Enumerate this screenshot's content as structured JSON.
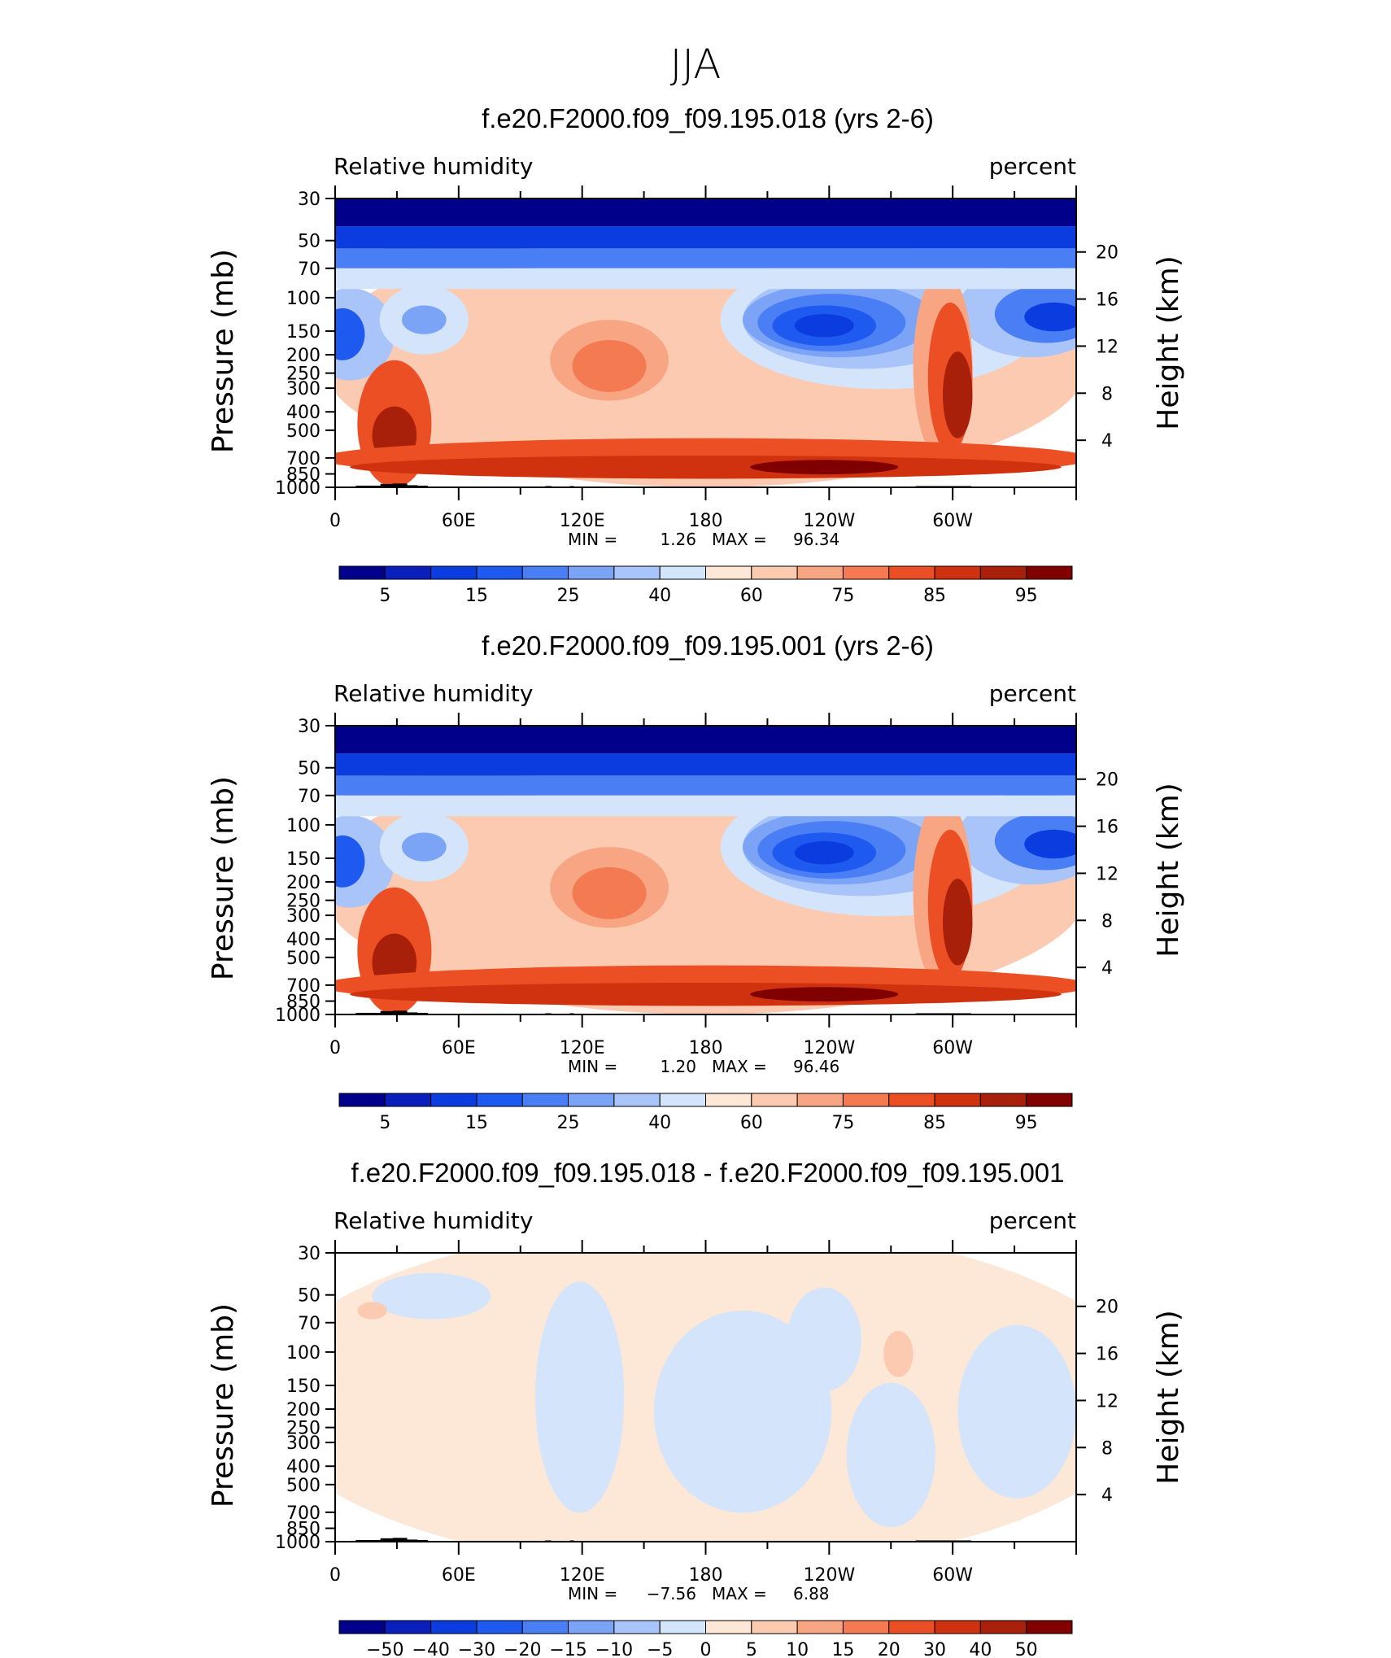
{
  "figure_title": "JJA",
  "chart_data": [
    {
      "type": "heatmap",
      "title": "f.e20.F2000.f09_f09.195.018 (yrs 2-6)",
      "left_label": "Relative humidity",
      "right_label": "percent",
      "ylabel": "Pressure (mb)",
      "ylabel_right": "Height (km)",
      "x_tick_labels": [
        "0",
        "60E",
        "120E",
        "180",
        "120W",
        "60W"
      ],
      "y_tick_labels": [
        "30",
        "50",
        "70",
        "100",
        "150",
        "200",
        "250",
        "300",
        "400",
        "500",
        "700",
        "850",
        "1000"
      ],
      "y_right_tick_labels": [
        "20",
        "16",
        "12",
        "8",
        "4"
      ],
      "min_label": "MIN =",
      "min_value": "1.26",
      "max_label": "MAX =",
      "max_value": "96.34",
      "colorbar_labels": [
        "5",
        "15",
        "25",
        "40",
        "60",
        "75",
        "85",
        "95"
      ],
      "field": "full"
    },
    {
      "type": "heatmap",
      "title": "f.e20.F2000.f09_f09.195.001 (yrs 2-6)",
      "left_label": "Relative humidity",
      "right_label": "percent",
      "ylabel": "Pressure (mb)",
      "ylabel_right": "Height (km)",
      "x_tick_labels": [
        "0",
        "60E",
        "120E",
        "180",
        "120W",
        "60W"
      ],
      "y_tick_labels": [
        "30",
        "50",
        "70",
        "100",
        "150",
        "200",
        "250",
        "300",
        "400",
        "500",
        "700",
        "850",
        "1000"
      ],
      "y_right_tick_labels": [
        "20",
        "16",
        "12",
        "8",
        "4"
      ],
      "min_label": "MIN =",
      "min_value": "1.20",
      "max_label": "MAX =",
      "max_value": "96.46",
      "colorbar_labels": [
        "5",
        "15",
        "25",
        "40",
        "60",
        "75",
        "85",
        "95"
      ],
      "field": "full"
    },
    {
      "type": "heatmap",
      "title": "f.e20.F2000.f09_f09.195.018 - f.e20.F2000.f09_f09.195.001",
      "left_label": "Relative humidity",
      "right_label": "percent",
      "ylabel": "Pressure (mb)",
      "ylabel_right": "Height (km)",
      "x_tick_labels": [
        "0",
        "60E",
        "120E",
        "180",
        "120W",
        "60W"
      ],
      "y_tick_labels": [
        "30",
        "50",
        "70",
        "100",
        "150",
        "200",
        "250",
        "300",
        "400",
        "500",
        "700",
        "850",
        "1000"
      ],
      "y_right_tick_labels": [
        "20",
        "16",
        "12",
        "8",
        "4"
      ],
      "min_label": "MIN =",
      "min_value": "−7.56",
      "max_label": "MAX =",
      "max_value": "6.88",
      "colorbar_labels": [
        "−50",
        "−40",
        "−30",
        "−20",
        "−15",
        "−10",
        "−5",
        "0",
        "5",
        "10",
        "15",
        "20",
        "30",
        "40",
        "50"
      ],
      "field": "diff"
    }
  ],
  "colors": {
    "palette": [
      "#00008b",
      "#0a1ebc",
      "#0a3ce0",
      "#1e5af0",
      "#4a7ef4",
      "#7ba4f7",
      "#a8c4f8",
      "#d4e4fb",
      "#fde8d8",
      "#fbcab0",
      "#f7a583",
      "#f47a52",
      "#ec4f24",
      "#d0320f",
      "#a8200a",
      "#800000"
    ],
    "orography": "#000000"
  }
}
